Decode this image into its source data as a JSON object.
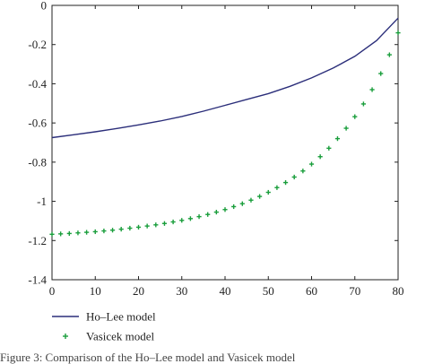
{
  "chart_data": {
    "type": "line",
    "xlim": [
      0,
      80
    ],
    "ylim": [
      -1.4,
      0
    ],
    "x_ticks": [
      "0",
      "10",
      "20",
      "30",
      "40",
      "50",
      "60",
      "70",
      "80"
    ],
    "y_ticks": [
      "0",
      "-0.2",
      "-0.4",
      "-0.6",
      "-0.8",
      "-1",
      "-1.2",
      "-1.4"
    ],
    "grid": false,
    "legend_position": "bottom-left, below axes",
    "series": [
      {
        "name": "Ho–Lee model",
        "style": "line",
        "color": "#2b2e7a",
        "x": [
          0,
          5,
          10,
          15,
          20,
          25,
          30,
          35,
          40,
          45,
          50,
          55,
          60,
          65,
          70,
          75,
          80
        ],
        "y": [
          -0.675,
          -0.66,
          -0.645,
          -0.628,
          -0.61,
          -0.59,
          -0.567,
          -0.54,
          -0.51,
          -0.48,
          -0.45,
          -0.413,
          -0.37,
          -0.32,
          -0.26,
          -0.18,
          -0.065
        ]
      },
      {
        "name": "Vasicek model",
        "style": "marker-plus",
        "color": "#1a9e3c",
        "x": [
          0,
          2,
          4,
          6,
          8,
          10,
          12,
          14,
          16,
          18,
          20,
          22,
          24,
          26,
          28,
          30,
          32,
          34,
          36,
          38,
          40,
          42,
          44,
          46,
          48,
          50,
          52,
          54,
          56,
          58,
          60,
          62,
          64,
          66,
          68,
          70,
          72,
          74,
          76,
          78,
          80
        ],
        "y": [
          -1.168,
          -1.166,
          -1.164,
          -1.161,
          -1.158,
          -1.155,
          -1.151,
          -1.147,
          -1.142,
          -1.137,
          -1.132,
          -1.126,
          -1.12,
          -1.113,
          -1.105,
          -1.097,
          -1.088,
          -1.078,
          -1.067,
          -1.055,
          -1.042,
          -1.027,
          -1.012,
          -0.994,
          -0.975,
          -0.954,
          -0.93,
          -0.904,
          -0.876,
          -0.845,
          -0.81,
          -0.772,
          -0.729,
          -0.68,
          -0.627,
          -0.568,
          -0.503,
          -0.43,
          -0.348,
          -0.252,
          -0.14
        ]
      }
    ]
  },
  "caption": "Figure 3: Comparison of the Ho–Lee model and Vasicek model"
}
